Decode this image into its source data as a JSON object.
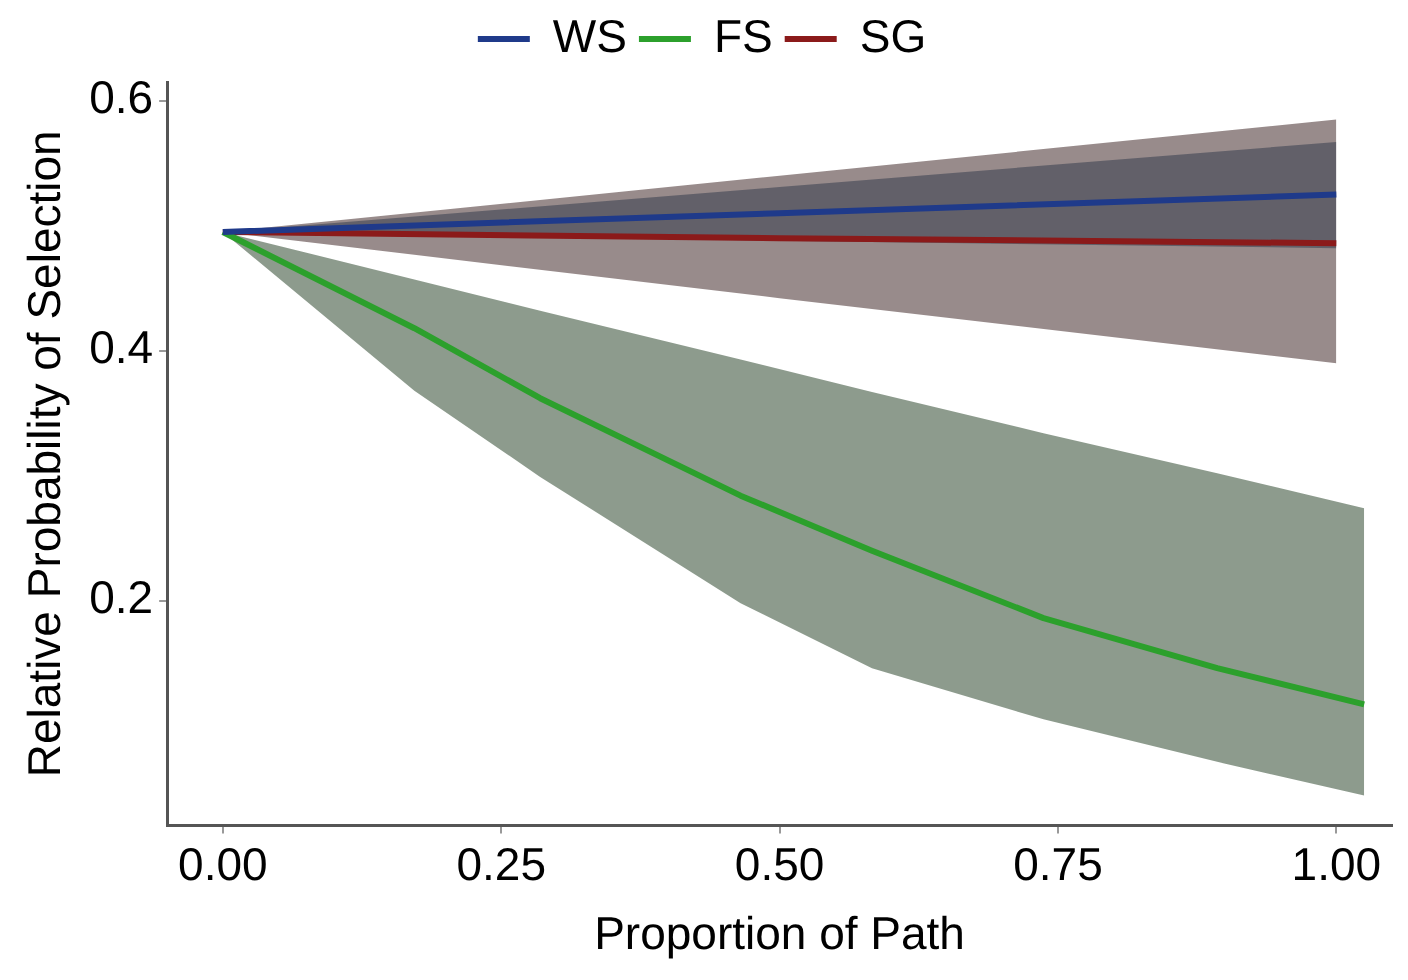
{
  "chart_data": {
    "type": "line",
    "xlabel": "Proportion of Path",
    "ylabel": "Relative Probability of Selection",
    "xlim": [
      -0.05,
      1.05
    ],
    "ylim": [
      0.02,
      0.615
    ],
    "xticks": [
      {
        "value": 0,
        "label": "0.00"
      },
      {
        "value": 0.25,
        "label": "0.25"
      },
      {
        "value": 0.5,
        "label": "0.50"
      },
      {
        "value": 0.75,
        "label": "0.75"
      },
      {
        "value": 1,
        "label": "1.00"
      }
    ],
    "yticks": [
      0.2,
      0.4,
      0.6
    ],
    "grid": false,
    "legend": "top",
    "marker": "none",
    "line_style": "solid",
    "series": [
      {
        "name": "WS",
        "color": "#1f3a8a",
        "x": [
          0,
          0.5,
          1
        ],
        "values": [
          0.495,
          0.51,
          0.525
        ],
        "lower": [
          0.495,
          0.488,
          0.482
        ],
        "upper": [
          0.495,
          0.531,
          0.567
        ]
      },
      {
        "name": "FS",
        "color": "#2ca02c",
        "x": [
          0,
          0.172,
          0.285,
          0.465,
          0.583,
          0.737,
          0.893,
          1.025
        ],
        "values": [
          0.495,
          0.418,
          0.362,
          0.284,
          0.24,
          0.186,
          0.146,
          0.117
        ],
        "lower": [
          0.495,
          0.368,
          0.299,
          0.198,
          0.146,
          0.105,
          0.071,
          0.044
        ],
        "upper": [
          0.495,
          0.457,
          0.432,
          0.393,
          0.367,
          0.334,
          0.302,
          0.274
        ]
      },
      {
        "name": "SG",
        "color": "#8b1a1a",
        "x": [
          0,
          0.5,
          1
        ],
        "values": [
          0.495,
          0.49,
          0.486
        ],
        "lower": [
          0.495,
          0.442,
          0.39
        ],
        "upper": [
          0.495,
          0.54,
          0.585
        ]
      }
    ]
  }
}
